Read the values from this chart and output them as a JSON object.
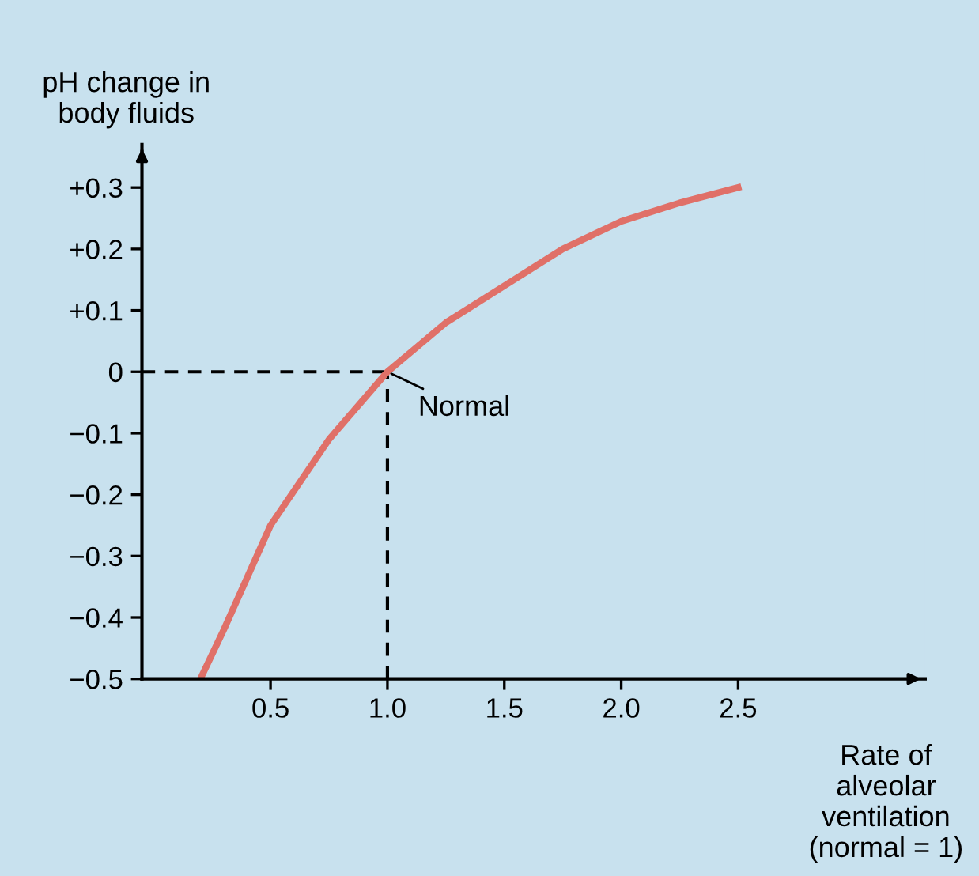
{
  "chart_data": {
    "type": "line",
    "ylabel": "pH change in\nbody fluids",
    "xlabel": "Rate of\nalveolar\nventilation\n(normal = 1)",
    "x": [
      0.2,
      0.3,
      0.5,
      0.75,
      1.0,
      1.25,
      1.5,
      1.75,
      2.0,
      2.25,
      2.5
    ],
    "series": [
      {
        "color": "#e07068",
        "values": [
          -0.5,
          -0.42,
          -0.25,
          -0.11,
          0,
          0.08,
          0.14,
          0.2,
          0.245,
          0.275,
          0.3
        ]
      }
    ],
    "xlim": [
      -0.05,
      3.3
    ],
    "ylim": [
      -0.5,
      0.37
    ],
    "xticks": [
      0.5,
      {
        "value": 1.0,
        "label": "1.0"
      },
      1.5,
      {
        "value": 2.0,
        "label": "2.0"
      },
      2.5
    ],
    "yticks": [
      {
        "value": -0.5,
        "label": "−0.5"
      },
      {
        "value": -0.4,
        "label": "−0.4"
      },
      {
        "value": -0.3,
        "label": "−0.3"
      },
      {
        "value": -0.2,
        "label": "−0.2"
      },
      {
        "value": -0.1,
        "label": "−0.1"
      },
      0,
      {
        "value": 0.1,
        "label": "+0.1"
      },
      {
        "value": 0.2,
        "label": "+0.2"
      },
      {
        "value": 0.3,
        "label": "+0.3"
      }
    ],
    "ref_lines": [
      {
        "axis": "y",
        "value": 0,
        "line_style": "dashed",
        "color": "#000000"
      },
      {
        "axis": "x",
        "value": 1.0,
        "line_style": "dashed",
        "color": "#000000"
      }
    ],
    "annotations": [
      {
        "text": "Normal",
        "x": 1.0,
        "y": 0
      }
    ],
    "grid": false,
    "legend": false,
    "marker": "none",
    "line_style": "solid"
  }
}
